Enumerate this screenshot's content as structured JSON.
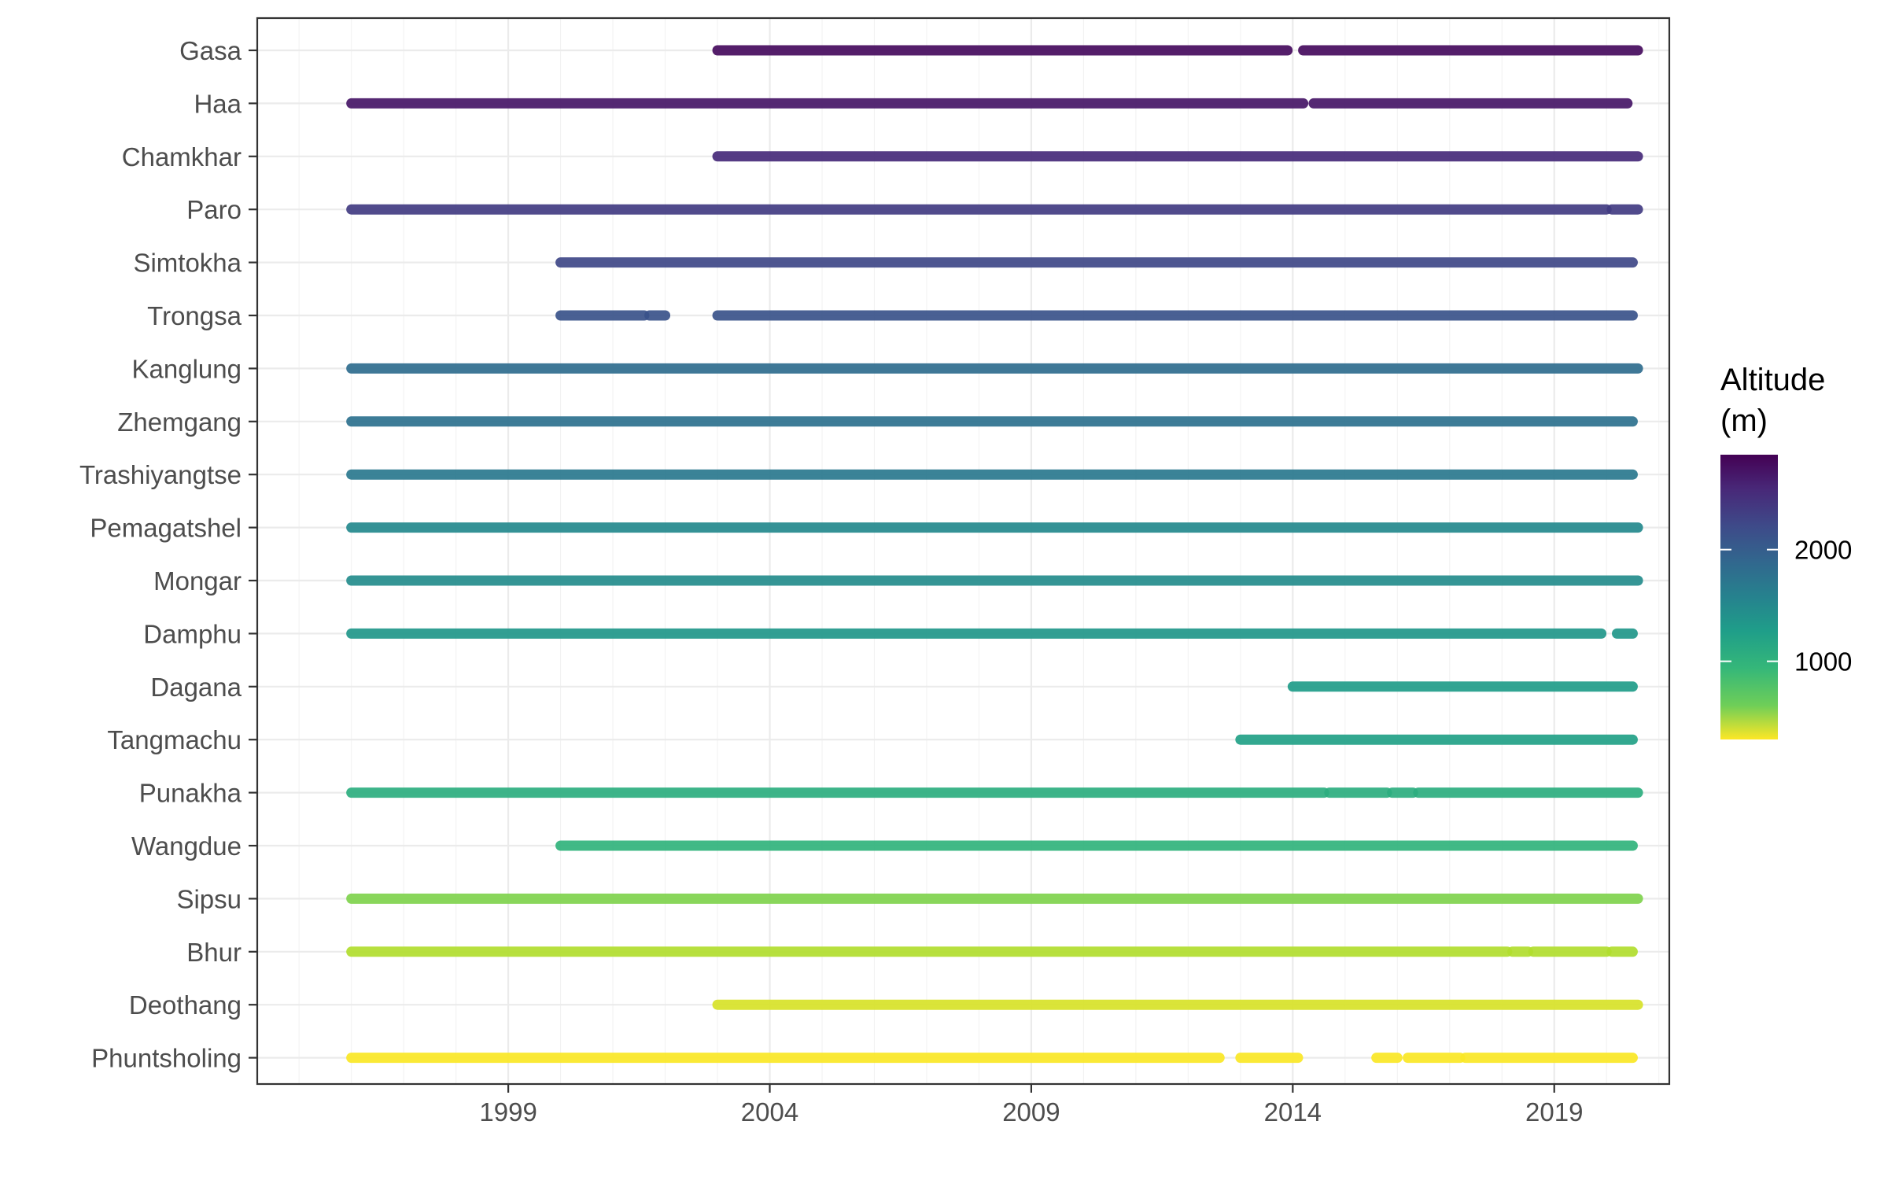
{
  "chart_data": {
    "type": "scatter",
    "title": "",
    "xlabel": "",
    "ylabel": "",
    "xlim": [
      1994.2,
      2021.2
    ],
    "x_ticks": [
      "1999",
      "2004",
      "2009",
      "2014",
      "2019"
    ],
    "grid": true,
    "legend": {
      "title_lines": [
        "Altitude",
        "(m)"
      ],
      "placement": "right",
      "colorscale": "viridis (reversed: high = purple, low = yellow)",
      "range": [
        300,
        2850
      ],
      "ticks": [
        "1000",
        "2000"
      ]
    },
    "stations": [
      {
        "name": "Gasa",
        "altitude": 2780,
        "segments": [
          [
            2003.0,
            2013.9
          ],
          [
            2014.2,
            2020.6
          ]
        ]
      },
      {
        "name": "Haa",
        "altitude": 2700,
        "segments": [
          [
            1996.0,
            2014.2
          ],
          [
            2014.4,
            2020.4
          ]
        ]
      },
      {
        "name": "Chamkhar",
        "altitude": 2550,
        "segments": [
          [
            2003.0,
            2020.6
          ]
        ]
      },
      {
        "name": "Paro",
        "altitude": 2400,
        "segments": [
          [
            1996.0,
            2020.0
          ],
          [
            2020.1,
            2020.6
          ]
        ]
      },
      {
        "name": "Simtokha",
        "altitude": 2300,
        "segments": [
          [
            2000.0,
            2020.5
          ]
        ]
      },
      {
        "name": "Trongsa",
        "altitude": 2200,
        "segments": [
          [
            2000.0,
            2001.6
          ],
          [
            2001.7,
            2002.0
          ],
          [
            2003.0,
            2020.5
          ]
        ]
      },
      {
        "name": "Kanglung",
        "altitude": 1950,
        "segments": [
          [
            1996.0,
            2020.6
          ]
        ]
      },
      {
        "name": "Zhemgang",
        "altitude": 1900,
        "segments": [
          [
            1996.0,
            2020.5
          ]
        ]
      },
      {
        "name": "Trashiyangtse",
        "altitude": 1830,
        "segments": [
          [
            1996.0,
            2020.5
          ]
        ]
      },
      {
        "name": "Pemagatshel",
        "altitude": 1650,
        "segments": [
          [
            1996.0,
            2020.6
          ]
        ]
      },
      {
        "name": "Mongar",
        "altitude": 1620,
        "segments": [
          [
            1996.0,
            2020.6
          ]
        ]
      },
      {
        "name": "Damphu",
        "altitude": 1500,
        "segments": [
          [
            1996.0,
            2019.9
          ],
          [
            2020.2,
            2020.5
          ]
        ]
      },
      {
        "name": "Dagana",
        "altitude": 1450,
        "segments": [
          [
            2014.0,
            2020.5
          ]
        ]
      },
      {
        "name": "Tangmachu",
        "altitude": 1400,
        "segments": [
          [
            2013.0,
            2020.5
          ]
        ]
      },
      {
        "name": "Punakha",
        "altitude": 1250,
        "segments": [
          [
            1996.0,
            2014.6
          ],
          [
            2014.7,
            2015.8
          ],
          [
            2015.9,
            2016.3
          ],
          [
            2016.4,
            2020.6
          ]
        ]
      },
      {
        "name": "Wangdue",
        "altitude": 1200,
        "segments": [
          [
            2000.0,
            2020.5
          ]
        ]
      },
      {
        "name": "Sipsu",
        "altitude": 800,
        "segments": [
          [
            1996.0,
            2020.6
          ]
        ]
      },
      {
        "name": "Bhur",
        "altitude": 600,
        "segments": [
          [
            1996.0,
            2018.1
          ],
          [
            2018.2,
            2018.5
          ],
          [
            2018.6,
            2020.0
          ],
          [
            2020.1,
            2020.5
          ]
        ]
      },
      {
        "name": "Deothang",
        "altitude": 450,
        "segments": [
          [
            2003.0,
            2020.6
          ]
        ]
      },
      {
        "name": "Phuntsholing",
        "altitude": 310,
        "segments": [
          [
            1996.0,
            2012.6
          ],
          [
            2013.0,
            2014.1
          ],
          [
            2015.6,
            2016.0
          ],
          [
            2016.2,
            2017.2
          ],
          [
            2017.3,
            2020.5
          ]
        ]
      }
    ]
  }
}
